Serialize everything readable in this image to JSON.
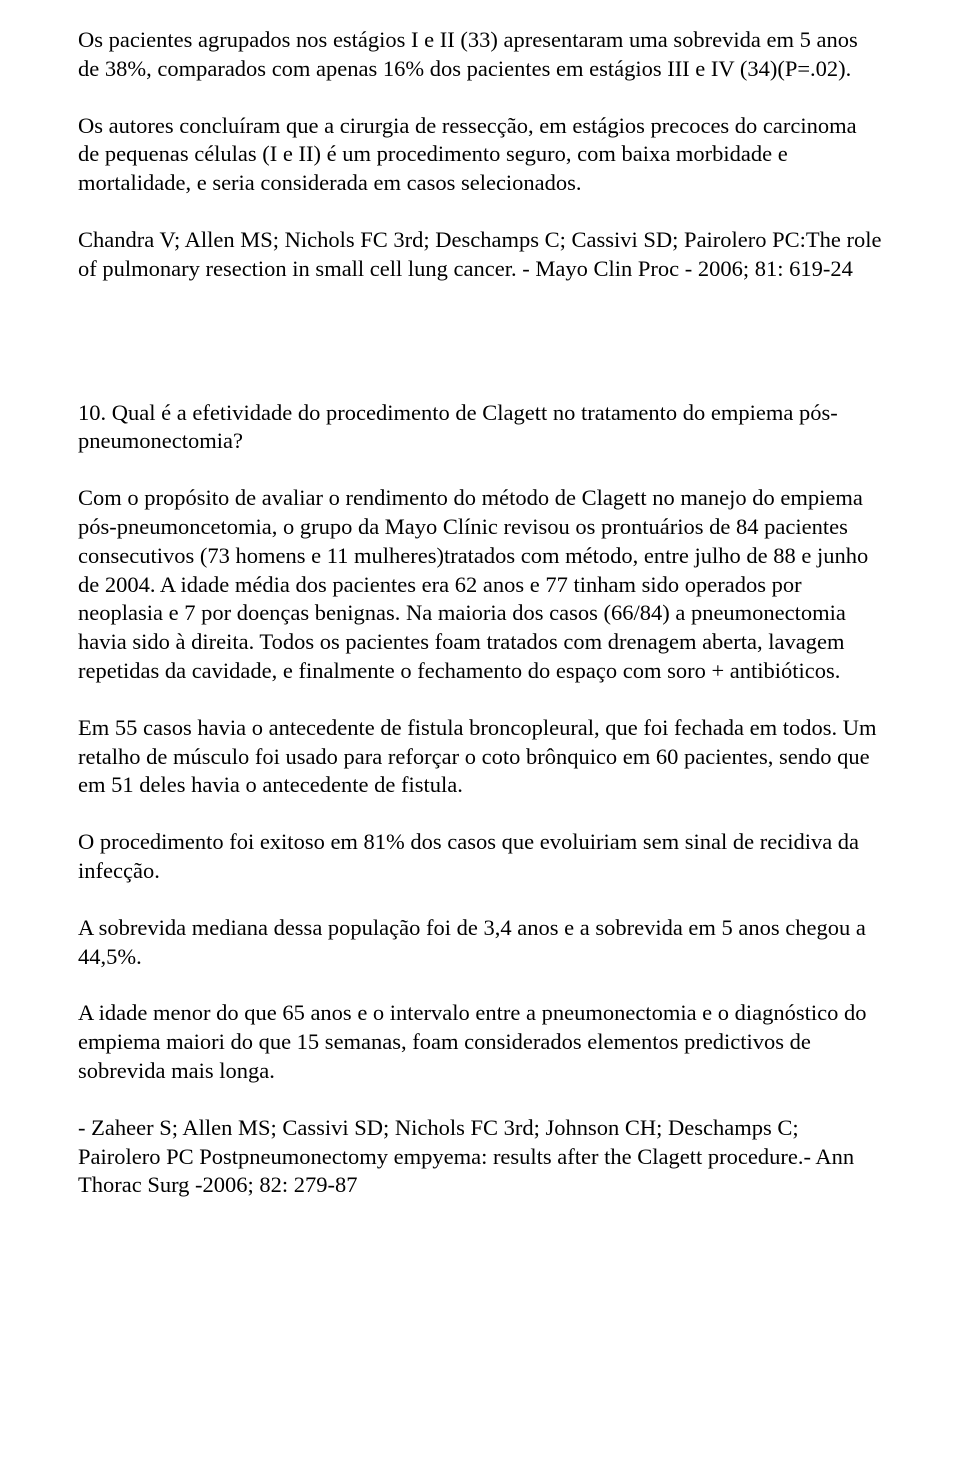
{
  "doc": {
    "p1": "Os pacientes agrupados nos estágios I e II (33) apresentaram uma sobrevida em 5 anos de 38%, comparados com apenas 16% dos pacientes em estágios III e IV (34)(P=.02).",
    "p2": "Os autores concluíram que a cirurgia de ressecção, em estágios precoces do carcinoma de pequenas células (I e II) é um procedimento seguro, com baixa morbidade e mortalidade, e seria considerada em casos selecionados.",
    "p3": "Chandra V; Allen MS; Nichols FC 3rd; Deschamps C; Cassivi SD; Pairolero PC:The role of pulmonary resection in small cell lung cancer. - Mayo Clin Proc - 2006; 81: 619-24",
    "p4": "10. Qual é a efetividade do procedimento de Clagett no tratamento do empiema pós-pneumonectomia?",
    "p5": "Com o propósito de avaliar o rendimento do método de Clagett no manejo do empiema pós-pneumoncetomia, o grupo da Mayo Clínic revisou os prontuários de 84 pacientes consecutivos (73 homens e 11 mulheres)tratados com método, entre julho de 88 e junho de 2004. A idade média dos pacientes era 62 anos e 77 tinham sido operados por neoplasia e 7 por doenças benignas. Na maioria dos casos (66/84) a pneumonectomia havia sido à direita. Todos os pacientes foam tratados com drenagem aberta, lavagem repetidas da cavidade, e finalmente o fechamento do espaço com soro + antibióticos.",
    "p6": "Em 55 casos havia o antecedente de fistula broncopleural, que foi fechada em todos. Um retalho de músculo foi usado para reforçar o coto brônquico em 60 pacientes, sendo que em 51 deles havia o antecedente de fistula.",
    "p7": "O procedimento foi exitoso em 81% dos casos que evoluiriam sem sinal de recidiva da infecção.",
    "p8": "A sobrevida mediana dessa população foi de 3,4 anos e a sobrevida em 5 anos chegou a 44,5%.",
    "p9": "A idade menor do que 65 anos e o intervalo entre a pneumonectomia e o diagnóstico do empiema maiori do que 15 semanas, foam considerados elementos predictivos de sobrevida mais longa.",
    "p10": "- Zaheer S; Allen MS; Cassivi SD; Nichols FC 3rd; Johnson CH; Deschamps C; Pairolero PC Postpneumonectomy empyema: results after the Clagett procedure.- Ann Thorac Surg -2006; 82: 279-87"
  }
}
